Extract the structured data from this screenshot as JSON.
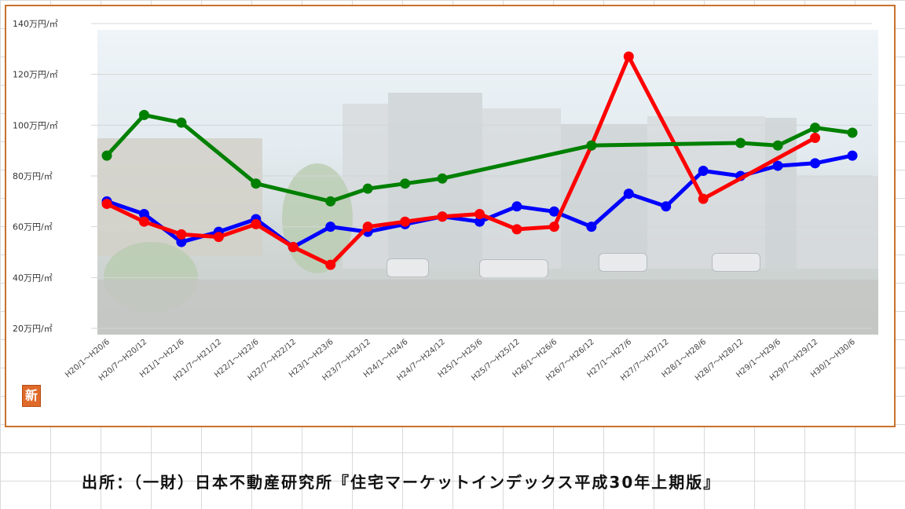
{
  "source_text": "出所：（一財）日本不動産研究所『住宅マーケットインデックス平成30年上期版』",
  "badge_glyph": "新",
  "colors": {
    "frame": "#c9712b",
    "grid": "#d4d4d4"
  },
  "chart_data": {
    "type": "line",
    "title": "",
    "xlabel": "",
    "ylabel": "",
    "ylim": [
      20,
      140
    ],
    "yticks": [
      20,
      40,
      60,
      80,
      100,
      120,
      140
    ],
    "ytick_labels": [
      "20万円/㎡",
      "40万円/㎡",
      "60万円/㎡",
      "80万円/㎡",
      "100万円/㎡",
      "120万円/㎡",
      "140万円/㎡"
    ],
    "grid": true,
    "categories": [
      "H20/1～H20/6",
      "H20/7～H20/12",
      "H21/1～H21/6",
      "H21/7～H21/12",
      "H22/1～H22/6",
      "H22/7～H22/12",
      "H23/1～H23/6",
      "H23/7～H23/12",
      "H24/1～H24/6",
      "H24/7～H24/12",
      "H25/1～H25/6",
      "H25/7～H25/12",
      "H26/1～H26/6",
      "H26/7～H26/12",
      "H27/1～H27/6",
      "H27/7～H27/12",
      "H28/1～H28/6",
      "H28/7～H28/12",
      "H29/1～H29/6",
      "H29/7～H29/12",
      "H30/1～H30/6"
    ],
    "series": [
      {
        "color": "#0000ff",
        "values": [
          70,
          65,
          54,
          58,
          63,
          52,
          60,
          58,
          61,
          64,
          62,
          68,
          66,
          60,
          73,
          68,
          82,
          80,
          84,
          85,
          88
        ]
      },
      {
        "color": "#ff0000",
        "values": [
          69,
          62,
          57,
          56,
          61,
          52,
          45,
          60,
          62,
          64,
          65,
          59,
          60,
          92,
          127,
          null,
          71,
          null,
          null,
          95,
          null
        ]
      },
      {
        "color": "#008000",
        "values": [
          88,
          104,
          101,
          null,
          77,
          null,
          70,
          75,
          77,
          79,
          null,
          null,
          null,
          92,
          null,
          null,
          null,
          93,
          92,
          99,
          97
        ]
      }
    ]
  }
}
